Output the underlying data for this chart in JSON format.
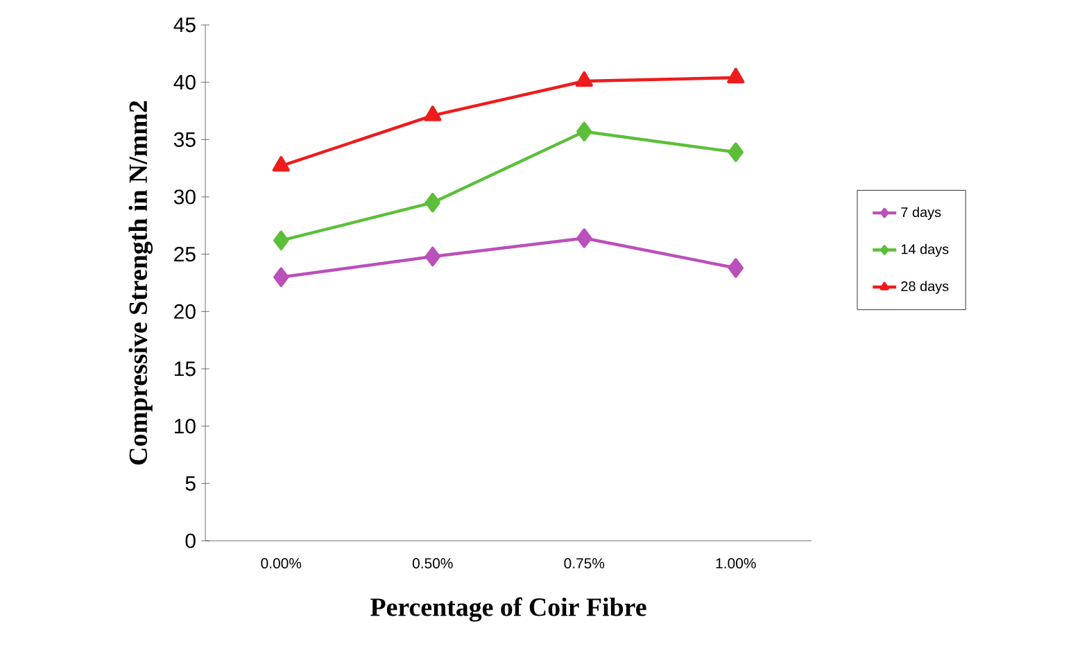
{
  "chart_data": {
    "type": "line",
    "xlabel": "Percentage of Coir Fibre",
    "ylabel": "Compressive Strength in N/mm2",
    "categories": [
      "0.00%",
      "0.50%",
      "0.75%",
      "1.00%"
    ],
    "series": [
      {
        "name": "7 days",
        "color": "#bb4fbb",
        "marker": "diamond",
        "values": [
          23.0,
          24.8,
          26.4,
          23.8
        ]
      },
      {
        "name": "14 days",
        "color": "#5cbf3a",
        "marker": "diamond",
        "values": [
          26.2,
          29.5,
          35.7,
          33.9
        ]
      },
      {
        "name": "28 days",
        "color": "#ee1c1c",
        "marker": "triangle",
        "values": [
          32.7,
          37.1,
          40.1,
          40.4
        ]
      }
    ],
    "ylim": [
      0,
      45
    ],
    "yticks": [
      0,
      5,
      10,
      15,
      20,
      25,
      30,
      35,
      40,
      45
    ],
    "legend": "right",
    "line_style": "solid"
  }
}
